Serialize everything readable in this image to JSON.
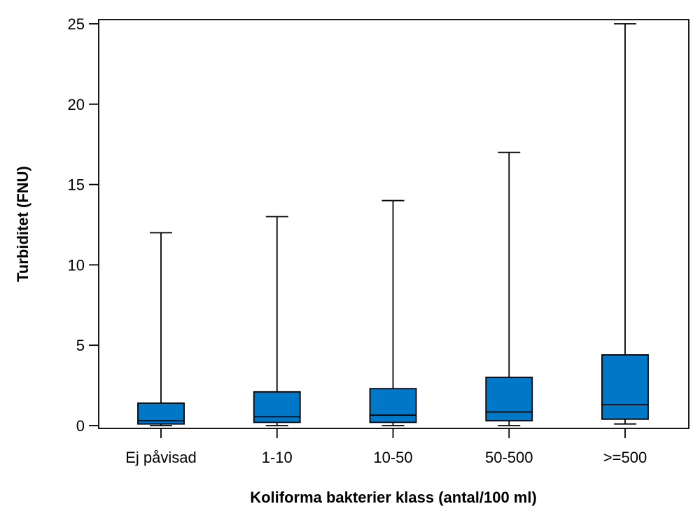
{
  "chart_data": {
    "type": "boxplot",
    "title": "",
    "xlabel": "Koliforma bakterier klass (antal/100 ml)",
    "ylabel": "Turbiditet (FNU)",
    "ylim": [
      0,
      25.3
    ],
    "yticks": [
      0,
      5,
      10,
      15,
      20,
      25
    ],
    "ytick_labels": [
      "0",
      "5",
      "10",
      "15",
      "20",
      "25"
    ],
    "categories": [
      "Ej påvisad",
      "1-10",
      "10-50",
      "50-500",
      ">=500"
    ],
    "boxes": [
      {
        "min": 0.0,
        "q1": 0.1,
        "median": 0.3,
        "q3": 1.4,
        "max": 12.0
      },
      {
        "min": 0.0,
        "q1": 0.2,
        "median": 0.55,
        "q3": 2.1,
        "max": 13.0
      },
      {
        "min": 0.0,
        "q1": 0.2,
        "median": 0.65,
        "q3": 2.3,
        "max": 14.0
      },
      {
        "min": 0.0,
        "q1": 0.3,
        "median": 0.85,
        "q3": 3.0,
        "max": 17.0
      },
      {
        "min": 0.1,
        "q1": 0.4,
        "median": 1.3,
        "q3": 4.4,
        "max": 25.0
      }
    ],
    "box_color": "#0078C8",
    "grid": false
  }
}
